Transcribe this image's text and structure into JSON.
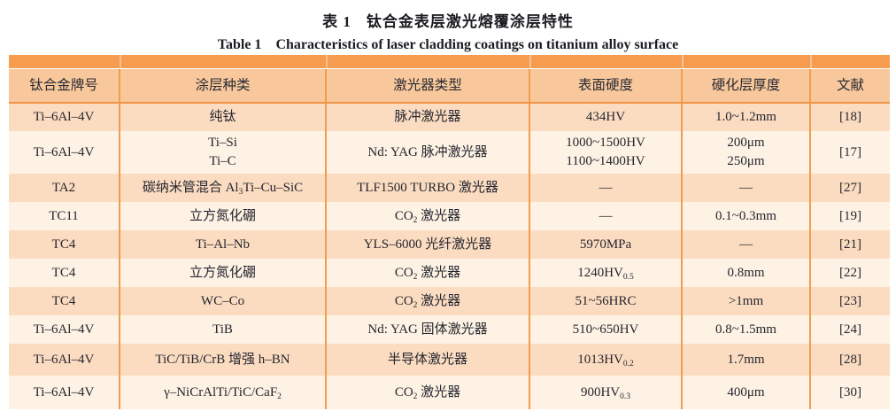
{
  "titles": {
    "cn": {
      "label": "表 1",
      "text": "钛合金表层激光熔覆涂层特性"
    },
    "en": {
      "label": "Table 1",
      "text": "Characteristics of laser cladding coatings on titanium alloy surface"
    }
  },
  "colors": {
    "top_band": "#F59C4E",
    "header_bg": "#F8C89C",
    "row_odd_bg": "#FBDCC1",
    "row_even_bg": "#FDF2E4",
    "column_border": "#F29C4F",
    "header_bottom_border": "#EF9445",
    "text": "#26262f"
  },
  "table": {
    "headers": [
      "钛合金牌号",
      "涂层种类",
      "激光器类型",
      "表面硬度",
      "硬化层厚度",
      "文献"
    ],
    "rows": [
      {
        "alloy": [
          [
            "Ti–6Al–4V"
          ]
        ],
        "coating": [
          [
            "纯钛"
          ]
        ],
        "laser": [
          [
            "脉冲激光器"
          ]
        ],
        "hardness": [
          [
            "434HV"
          ]
        ],
        "thickness": [
          [
            "1.0~1.2mm"
          ]
        ],
        "ref": [
          [
            "[18]"
          ]
        ]
      },
      {
        "alloy": [
          [
            "Ti–6Al–4V"
          ]
        ],
        "coating": [
          [
            "Ti–Si"
          ],
          [
            "Ti–C"
          ]
        ],
        "laser": [
          [
            "Nd: YAG 脉冲激光器"
          ]
        ],
        "hardness": [
          [
            "1000~1500HV"
          ],
          [
            "1100~1400HV"
          ]
        ],
        "thickness": [
          [
            "200μm"
          ],
          [
            "250μm"
          ]
        ],
        "ref": [
          [
            "[17]"
          ]
        ]
      },
      {
        "alloy": [
          [
            "TA2"
          ]
        ],
        "coating": [
          [
            "碳纳米管混合 Al",
            {
              "sub": "3"
            },
            "Ti–Cu–SiC"
          ]
        ],
        "laser": [
          [
            "TLF1500 TURBO 激光器"
          ]
        ],
        "hardness": [
          [
            "—"
          ]
        ],
        "thickness": [
          [
            "—"
          ]
        ],
        "ref": [
          [
            "[27]"
          ]
        ]
      },
      {
        "alloy": [
          [
            "TC11"
          ]
        ],
        "coating": [
          [
            "立方氮化硼"
          ]
        ],
        "laser": [
          [
            "CO",
            {
              "sub": "2"
            },
            " 激光器"
          ]
        ],
        "hardness": [
          [
            "—"
          ]
        ],
        "thickness": [
          [
            "0.1~0.3mm"
          ]
        ],
        "ref": [
          [
            "[19]"
          ]
        ]
      },
      {
        "alloy": [
          [
            "TC4"
          ]
        ],
        "coating": [
          [
            "Ti–Al–Nb"
          ]
        ],
        "laser": [
          [
            "YLS–6000 光纤激光器"
          ]
        ],
        "hardness": [
          [
            "5970MPa"
          ]
        ],
        "thickness": [
          [
            "—"
          ]
        ],
        "ref": [
          [
            "[21]"
          ]
        ]
      },
      {
        "alloy": [
          [
            "TC4"
          ]
        ],
        "coating": [
          [
            "立方氮化硼"
          ]
        ],
        "laser": [
          [
            "CO",
            {
              "sub": "2"
            },
            " 激光器"
          ]
        ],
        "hardness": [
          [
            "1240HV",
            {
              "sub": "0.5"
            }
          ]
        ],
        "thickness": [
          [
            "0.8mm"
          ]
        ],
        "ref": [
          [
            "[22]"
          ]
        ]
      },
      {
        "alloy": [
          [
            "TC4"
          ]
        ],
        "coating": [
          [
            "WC–Co"
          ]
        ],
        "laser": [
          [
            "CO",
            {
              "sub": "2"
            },
            " 激光器"
          ]
        ],
        "hardness": [
          [
            "51~56HRC"
          ]
        ],
        "thickness": [
          [
            ">1mm"
          ]
        ],
        "ref": [
          [
            "[23]"
          ]
        ]
      },
      {
        "alloy": [
          [
            "Ti–6Al–4V"
          ]
        ],
        "coating": [
          [
            "TiB"
          ]
        ],
        "laser": [
          [
            "Nd: YAG 固体激光器"
          ]
        ],
        "hardness": [
          [
            "510~650HV"
          ]
        ],
        "thickness": [
          [
            "0.8~1.5mm"
          ]
        ],
        "ref": [
          [
            "[24]"
          ]
        ]
      },
      {
        "alloy": [
          [
            "Ti–6Al–4V"
          ]
        ],
        "coating": [
          [
            "TiC/TiB/CrB 增强 h–BN"
          ]
        ],
        "laser": [
          [
            "半导体激光器"
          ]
        ],
        "hardness": [
          [
            "1013HV",
            {
              "sub": "0.2"
            }
          ]
        ],
        "thickness": [
          [
            "1.7mm"
          ]
        ],
        "ref": [
          [
            "[28]"
          ]
        ]
      },
      {
        "alloy": [
          [
            "Ti–6Al–4V"
          ]
        ],
        "coating": [
          [
            "γ–NiCrAlTi/TiC/CaF",
            {
              "sub": "2"
            }
          ]
        ],
        "laser": [
          [
            "CO",
            {
              "sub": "2"
            },
            " 激光器"
          ]
        ],
        "hardness": [
          [
            "900HV",
            {
              "sub": "0.3"
            }
          ]
        ],
        "thickness": [
          [
            "400μm"
          ]
        ],
        "ref": [
          [
            "[30]"
          ]
        ]
      }
    ]
  }
}
